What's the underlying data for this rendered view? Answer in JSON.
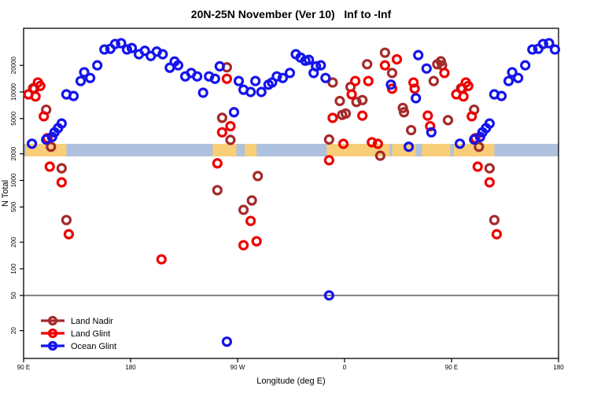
{
  "chart_data": {
    "type": "scatter",
    "title": "20N-25N November (Ver 10)   Inf to -Inf",
    "xlabel": "Longitude (deg E)",
    "ylabel": "N Total",
    "y_scale": "log",
    "ylim": [
      13,
      42000
    ],
    "y_ticks": [
      20,
      50,
      100,
      200,
      500,
      1000,
      2000,
      5000,
      10000,
      20000
    ],
    "x_axis_wrap_start_lon": 90,
    "x_ticks": [
      {
        "u": 0,
        "label": "90 E"
      },
      {
        "u": 90,
        "label": "180"
      },
      {
        "u": 180,
        "label": "90 W"
      },
      {
        "u": 270,
        "label": "0"
      },
      {
        "u": 360,
        "label": "90 E"
      },
      {
        "u": 450,
        "label": "180"
      }
    ],
    "reference_line": {
      "value": 50,
      "color": "#7f7f7f"
    },
    "map_band": {
      "description": "world coastline strip at 20N-25N drawn across plot near N=2000",
      "ocean_color": "#aec1de",
      "land_color": "#f8ce79",
      "land_segments_lon": [
        [
          -111,
          -91
        ],
        [
          -84,
          -74
        ],
        [
          -15,
          38
        ],
        [
          40,
          60
        ],
        [
          65,
          89
        ],
        [
          92,
          126
        ]
      ]
    },
    "legend_position": "bottom-left",
    "point_format": "[longitude_degE, n_total]",
    "series": [
      {
        "name": "Land Nadir",
        "color": "#a52a2a",
        "points": [
          [
            98,
            11000
          ],
          [
            109,
            6300
          ],
          [
            113,
            2400
          ],
          [
            122,
            1370
          ],
          [
            126,
            356
          ],
          [
            -107,
            775
          ],
          [
            -103,
            5100
          ],
          [
            -99,
            19000
          ],
          [
            -96,
            2870
          ],
          [
            -85,
            464
          ],
          [
            -78,
            593
          ],
          [
            -73,
            1120
          ],
          [
            -13,
            2900
          ],
          [
            -10,
            12800
          ],
          [
            -4,
            7900
          ],
          [
            -2,
            5500
          ],
          [
            1,
            5700
          ],
          [
            5,
            11400
          ],
          [
            10,
            7700
          ],
          [
            15,
            8100
          ],
          [
            19,
            20600
          ],
          [
            30,
            1900
          ],
          [
            34,
            27800
          ],
          [
            40,
            16400
          ],
          [
            49,
            6600
          ],
          [
            50,
            5900
          ],
          [
            56,
            3700
          ],
          [
            75,
            13300
          ],
          [
            78,
            20600
          ],
          [
            81,
            22200
          ],
          [
            82,
            20000
          ],
          [
            87,
            4800
          ]
        ]
      },
      {
        "name": "Land Glint",
        "color": "#ee0000",
        "points": [
          [
            99,
            10900
          ],
          [
            102,
            12800
          ],
          [
            104,
            11700
          ],
          [
            100,
            8900
          ],
          [
            107,
            5300
          ],
          [
            110,
            3000
          ],
          [
            112,
            1430
          ],
          [
            122,
            950
          ],
          [
            128,
            246
          ],
          [
            -154,
            128
          ],
          [
            -107,
            1560
          ],
          [
            -103,
            3500
          ],
          [
            -99,
            14100
          ],
          [
            -96,
            4100
          ],
          [
            -85,
            185
          ],
          [
            -79,
            348
          ],
          [
            -74,
            205
          ],
          [
            -13,
            1690
          ],
          [
            -10,
            5090
          ],
          [
            -1,
            2590
          ],
          [
            6,
            9400
          ],
          [
            9,
            13300
          ],
          [
            15,
            5400
          ],
          [
            20,
            13300
          ],
          [
            23,
            2700
          ],
          [
            28,
            2590
          ],
          [
            34,
            20000
          ],
          [
            40,
            10900
          ],
          [
            44,
            23400
          ],
          [
            58,
            12800
          ],
          [
            59,
            10900
          ],
          [
            70,
            5400
          ],
          [
            72,
            4100
          ],
          [
            84,
            16400
          ],
          [
            94,
            9400
          ]
        ]
      },
      {
        "name": "Ocean Glint",
        "color": "#1414ee",
        "points": [
          [
            97,
            2600
          ],
          [
            109,
            2900
          ],
          [
            114,
            3100
          ],
          [
            116,
            3500
          ],
          [
            119,
            3900
          ],
          [
            122,
            4400
          ],
          [
            126,
            9400
          ],
          [
            132,
            9000
          ],
          [
            138,
            13300
          ],
          [
            141,
            16700
          ],
          [
            146,
            14400
          ],
          [
            152,
            20000
          ],
          [
            158,
            30200
          ],
          [
            163,
            30800
          ],
          [
            167,
            34900
          ],
          [
            172,
            35600
          ],
          [
            177,
            30200
          ],
          [
            -179,
            31400
          ],
          [
            -173,
            26700
          ],
          [
            -168,
            29200
          ],
          [
            -163,
            25500
          ],
          [
            -158,
            28600
          ],
          [
            -153,
            26700
          ],
          [
            -147,
            18800
          ],
          [
            -143,
            22100
          ],
          [
            -140,
            20000
          ],
          [
            -134,
            15000
          ],
          [
            -129,
            16400
          ],
          [
            -124,
            15000
          ],
          [
            -119,
            9800
          ],
          [
            -114,
            15000
          ],
          [
            -109,
            14100
          ],
          [
            -105,
            19500
          ],
          [
            -99,
            15
          ],
          [
            -93,
            5900
          ],
          [
            -89,
            13300
          ],
          [
            -85,
            10600
          ],
          [
            -79,
            10000
          ],
          [
            -75,
            13300
          ],
          [
            -70,
            10000
          ],
          [
            -64,
            12100
          ],
          [
            -61,
            12800
          ],
          [
            -57,
            15000
          ],
          [
            -52,
            14400
          ],
          [
            -46,
            16400
          ],
          [
            -41,
            26700
          ],
          [
            -37,
            24500
          ],
          [
            -33,
            22600
          ],
          [
            -30,
            23100
          ],
          [
            -26,
            16400
          ],
          [
            -24,
            19500
          ],
          [
            -20,
            20000
          ],
          [
            -16,
            14400
          ],
          [
            -13,
            50
          ],
          [
            39,
            12100
          ],
          [
            54,
            2400
          ],
          [
            60,
            8500
          ],
          [
            62,
            26100
          ],
          [
            69,
            18400
          ],
          [
            73,
            3500
          ]
        ]
      }
    ],
    "legend": [
      {
        "label": "Land Nadir"
      },
      {
        "label": "Land Glint"
      },
      {
        "label": "Ocean Glint"
      }
    ]
  }
}
